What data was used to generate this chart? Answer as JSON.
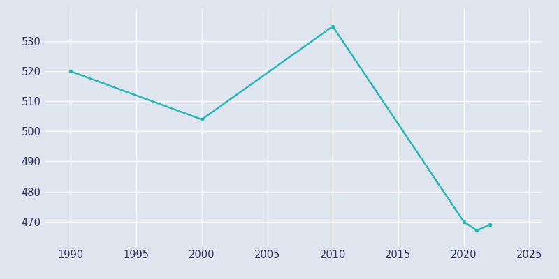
{
  "years": [
    1990,
    2000,
    2010,
    2020,
    2021,
    2022
  ],
  "values": [
    520,
    504,
    535,
    470,
    467,
    469
  ],
  "line_color": "#2ab5b5",
  "background_color": "#dfe5ef",
  "grid_color": "#ffffff",
  "tick_color": "#2d3561",
  "xlim": [
    1988,
    2026
  ],
  "ylim": [
    462,
    541
  ],
  "xticks": [
    1990,
    1995,
    2000,
    2005,
    2010,
    2015,
    2020,
    2025
  ],
  "yticks": [
    470,
    480,
    490,
    500,
    510,
    520,
    530
  ],
  "line_width": 1.8,
  "figsize": [
    8.0,
    4.0
  ],
  "dpi": 100
}
